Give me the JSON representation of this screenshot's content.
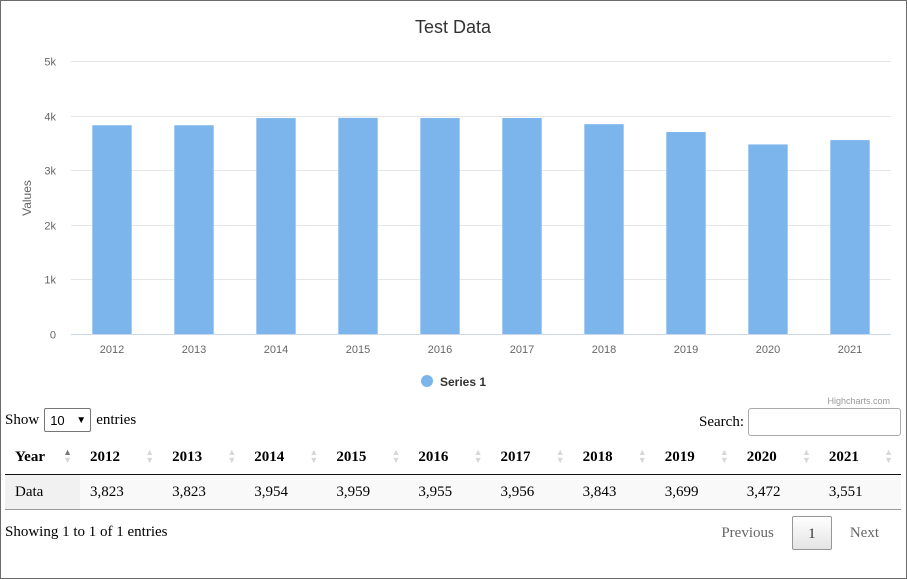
{
  "chart_data": {
    "type": "bar",
    "title": "Test Data",
    "ylabel": "Values",
    "xlabel": "",
    "categories": [
      "2012",
      "2013",
      "2014",
      "2015",
      "2016",
      "2017",
      "2018",
      "2019",
      "2020",
      "2021"
    ],
    "series": [
      {
        "name": "Series 1",
        "color": "#7cb5ec",
        "values": [
          3823,
          3823,
          3954,
          3959,
          3955,
          3956,
          3843,
          3699,
          3472,
          3551
        ]
      }
    ],
    "ylim": [
      0,
      5000
    ],
    "yticks": [
      0,
      1000,
      2000,
      3000,
      4000,
      5000
    ],
    "ytick_labels": [
      "0",
      "1k",
      "2k",
      "3k",
      "4k",
      "5k"
    ],
    "grid": true,
    "legend_position": "bottom",
    "credits": "Highcharts.com"
  },
  "controls": {
    "show_label": "Show",
    "length_value": "10",
    "entries_label": "entries",
    "search_label": "Search:",
    "search_value": ""
  },
  "table": {
    "headers": [
      "Year",
      "2012",
      "2013",
      "2014",
      "2015",
      "2016",
      "2017",
      "2018",
      "2019",
      "2020",
      "2021"
    ],
    "rows": [
      [
        "Data",
        "3,823",
        "3,823",
        "3,954",
        "3,959",
        "3,955",
        "3,956",
        "3,843",
        "3,699",
        "3,472",
        "3,551"
      ]
    ]
  },
  "footer": {
    "info": "Showing 1 to 1 of 1 entries",
    "previous": "Previous",
    "page": "1",
    "next": "Next"
  }
}
